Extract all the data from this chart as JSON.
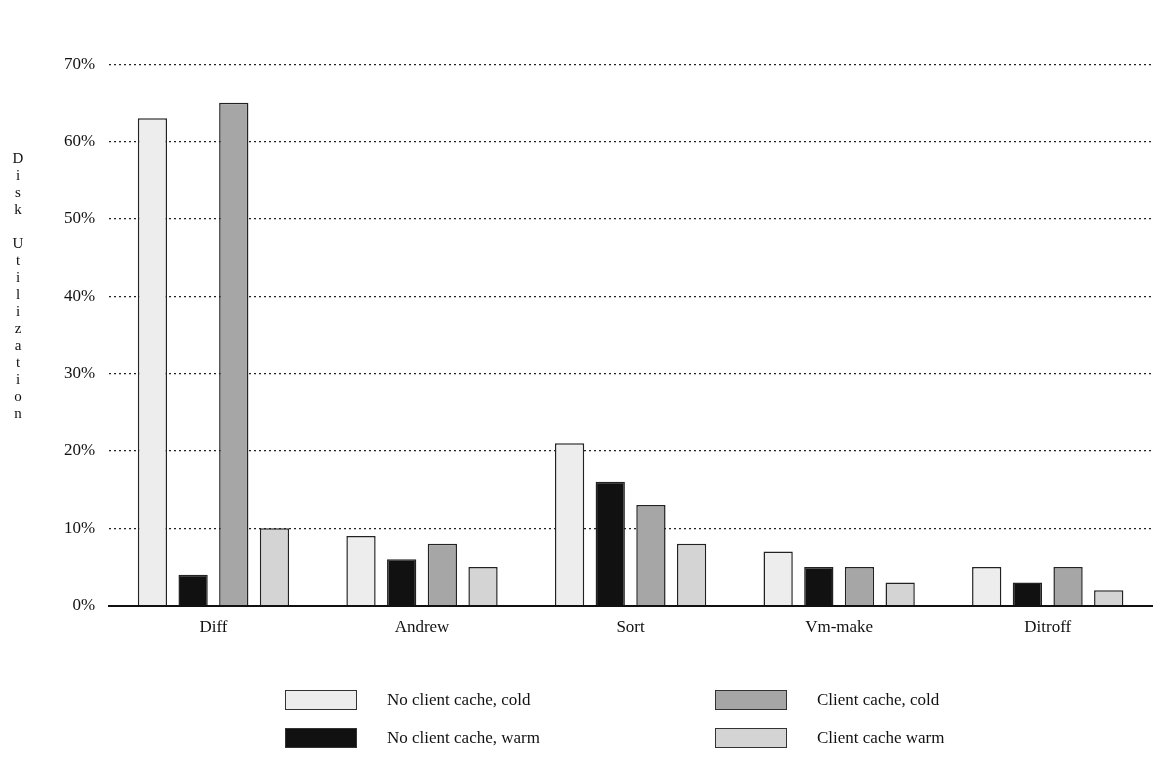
{
  "chart_data": {
    "type": "bar",
    "ylabel": "Disk Utilization",
    "categories": [
      "Diff",
      "Andrew",
      "Sort",
      "Vm-make",
      "Ditroff"
    ],
    "series": [
      {
        "name": "No client cache, cold",
        "color": "#ededed",
        "values": [
          63,
          9,
          21,
          7,
          5
        ]
      },
      {
        "name": "No client cache, warm",
        "color": "#111111",
        "values": [
          4,
          6,
          16,
          5,
          3
        ]
      },
      {
        "name": "Client cache, cold",
        "color": "#a6a6a6",
        "values": [
          65,
          8,
          13,
          5,
          5
        ]
      },
      {
        "name": "Client cache warm",
        "color": "#d4d4d4",
        "values": [
          10,
          5,
          8,
          3,
          2
        ]
      }
    ],
    "ylim": [
      0,
      70
    ],
    "yticks": [
      {
        "value": 0,
        "label": "0%"
      },
      {
        "value": 10,
        "label": "10%"
      },
      {
        "value": 20,
        "label": "20%"
      },
      {
        "value": 30,
        "label": "30%"
      },
      {
        "value": 40,
        "label": "40%"
      },
      {
        "value": 50,
        "label": "50%"
      },
      {
        "value": 60,
        "label": "60%"
      },
      {
        "value": 70,
        "label": "70%"
      }
    ],
    "grid": "y",
    "legend": "bottom",
    "line_style": "dotted"
  }
}
